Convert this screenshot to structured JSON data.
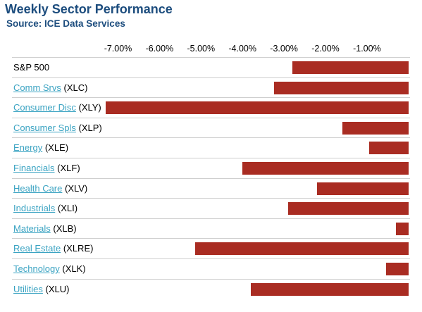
{
  "title": "Weekly Sector Performance",
  "subtitle": "Source: ICE Data Services",
  "colors": {
    "title": "#1d4d7e",
    "bar": "#a92c22",
    "link": "#3aa3c2",
    "divider": "#cfcfcf"
  },
  "chart_data": {
    "type": "bar",
    "orientation": "horizontal",
    "xlim": [
      -7.3,
      0
    ],
    "tick_values": [
      -7,
      -6,
      -5,
      -4,
      -3,
      -2,
      -1
    ],
    "tick_labels": [
      "-7.00%",
      "-6.00%",
      "-5.00%",
      "-4.00%",
      "-3.00%",
      "-2.00%",
      "-1.00%"
    ],
    "axis_position": "top",
    "grid": false,
    "rows": [
      {
        "name": "S&P 500",
        "ticker": "",
        "linked": false,
        "value": -2.8
      },
      {
        "name": "Comm Srvs",
        "ticker": "(XLC)",
        "linked": true,
        "value": -3.25
      },
      {
        "name": "Consumer Disc",
        "ticker": "(XLY)",
        "linked": true,
        "value": -7.3
      },
      {
        "name": "Consumer Spls",
        "ticker": "(XLP)",
        "linked": true,
        "value": -1.6
      },
      {
        "name": "Energy",
        "ticker": "(XLE)",
        "linked": true,
        "value": -0.95
      },
      {
        "name": "Financials",
        "ticker": "(XLF)",
        "linked": true,
        "value": -4.0
      },
      {
        "name": "Health Care",
        "ticker": "(XLV)",
        "linked": true,
        "value": -2.2
      },
      {
        "name": "Industrials",
        "ticker": "(XLI)",
        "linked": true,
        "value": -2.9
      },
      {
        "name": "Materials",
        "ticker": "(XLB)",
        "linked": true,
        "value": -0.3
      },
      {
        "name": "Real Estate",
        "ticker": "(XLRE)",
        "linked": true,
        "value": -5.15
      },
      {
        "name": "Technology",
        "ticker": "(XLK)",
        "linked": true,
        "value": -0.55
      },
      {
        "name": "Utilities",
        "ticker": "(XLU)",
        "linked": true,
        "value": -3.8
      }
    ]
  }
}
